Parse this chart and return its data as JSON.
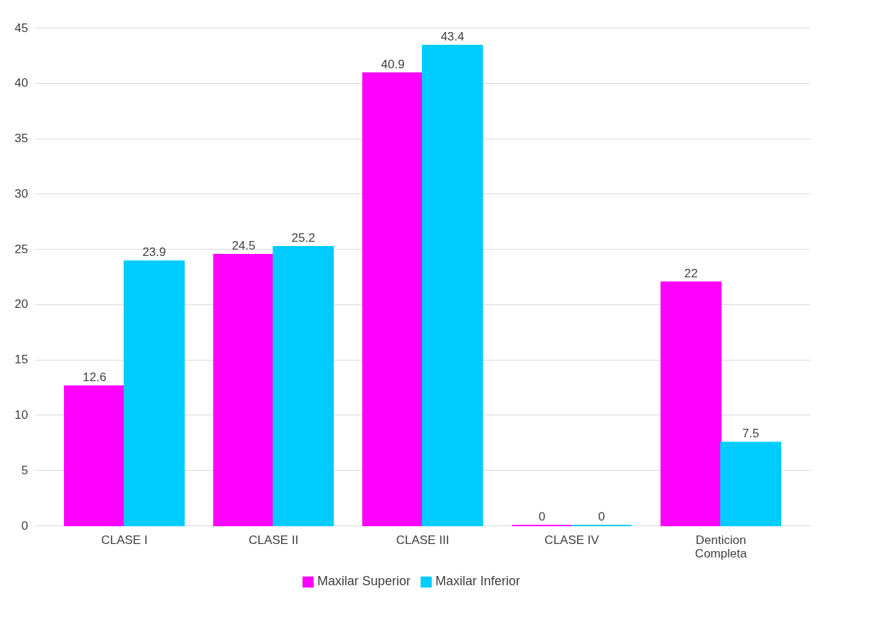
{
  "chart_data": {
    "type": "bar",
    "categories": [
      "CLASE I",
      "CLASE II",
      "CLASE III",
      "CLASE IV",
      "Denticion Completa"
    ],
    "series": [
      {
        "name": "Maxilar Superior",
        "color": "#ff00ff",
        "values": [
          12.6,
          24.5,
          40.9,
          0,
          22
        ]
      },
      {
        "name": "Maxilar Inferior",
        "color": "#00ccff",
        "values": [
          23.9,
          25.2,
          43.4,
          0,
          7.5
        ]
      }
    ],
    "ylim": [
      0,
      45
    ],
    "yticks": [
      0,
      5,
      10,
      15,
      20,
      25,
      30,
      35,
      40,
      45
    ],
    "grid": "y",
    "legend": "bottom",
    "data_labels": true
  }
}
